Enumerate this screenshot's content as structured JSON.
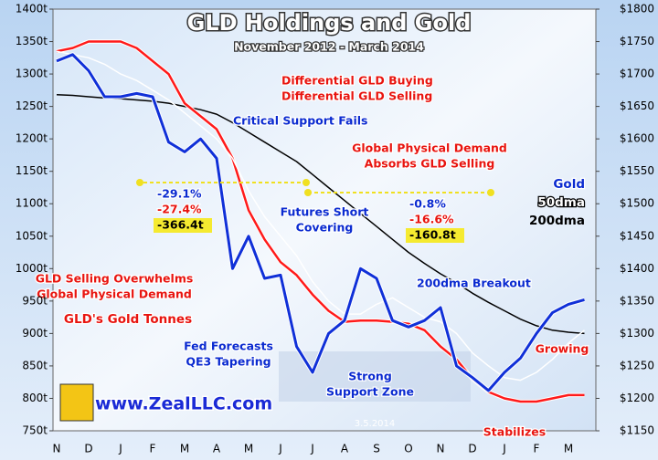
{
  "chart_data": {
    "type": "line",
    "title": "GLD Holdings and Gold",
    "subtitle": "November 2012 - March 2014",
    "categories": [
      "N",
      null,
      "D",
      null,
      "J",
      null,
      "F",
      null,
      "M",
      null,
      "A",
      null,
      "M",
      null,
      "J",
      null,
      "J",
      null,
      "A",
      null,
      "S",
      null,
      "O",
      null,
      "N",
      null,
      "D",
      null,
      "J",
      null,
      "F",
      null,
      "M",
      null
    ],
    "series": [
      {
        "name": "GLD's Gold Tonnes",
        "color": "#ff1a1a",
        "axis": "y",
        "values": [
          1335,
          1340,
          1350,
          1350,
          1350,
          1340,
          1320,
          1300,
          1255,
          1235,
          1215,
          1170,
          1090,
          1045,
          1010,
          990,
          960,
          935,
          918,
          920,
          920,
          918,
          915,
          905,
          880,
          860,
          830,
          810,
          800,
          795,
          795,
          800,
          805,
          805
        ]
      },
      {
        "name": "Gold",
        "color": "#1030d8",
        "axis": "y2",
        "values": [
          1720,
          1730,
          1705,
          1665,
          1665,
          1670,
          1665,
          1595,
          1580,
          1600,
          1570,
          1400,
          1450,
          1385,
          1390,
          1280,
          1240,
          1300,
          1320,
          1400,
          1385,
          1320,
          1310,
          1320,
          1340,
          1250,
          1232,
          1212,
          1240,
          1262,
          1300,
          1332,
          1345,
          1352
        ]
      },
      {
        "name": "50dma",
        "color": "#ffffff",
        "axis": "y2",
        "values": [
          1735,
          1730,
          1725,
          1715,
          1700,
          1690,
          1675,
          1660,
          1640,
          1620,
          1600,
          1570,
          1520,
          1480,
          1450,
          1420,
          1380,
          1350,
          1330,
          1330,
          1345,
          1355,
          1340,
          1325,
          1318,
          1300,
          1270,
          1250,
          1232,
          1228,
          1240,
          1260,
          1285,
          1305
        ]
      },
      {
        "name": "200dma",
        "color": "#000000",
        "axis": "y2",
        "values": [
          1668,
          1667,
          1665,
          1663,
          1662,
          1660,
          1658,
          1655,
          1650,
          1645,
          1638,
          1625,
          1610,
          1595,
          1580,
          1565,
          1545,
          1525,
          1505,
          1485,
          1465,
          1445,
          1425,
          1408,
          1392,
          1378,
          1362,
          1348,
          1335,
          1322,
          1312,
          1305,
          1302,
          1300
        ]
      }
    ],
    "ylim": [
      750,
      1400
    ],
    "yticks": [
      {
        "value": 750,
        "label": "750t"
      },
      {
        "value": 800,
        "label": "800t"
      },
      {
        "value": 850,
        "label": "850t"
      },
      {
        "value": 900,
        "label": "900t"
      },
      {
        "value": 950,
        "label": "950t"
      },
      {
        "value": 1000,
        "label": "1000t"
      },
      {
        "value": 1050,
        "label": "1050t"
      },
      {
        "value": 1100,
        "label": "1100t"
      },
      {
        "value": 1150,
        "label": "1150t"
      },
      {
        "value": 1200,
        "label": "1200t"
      },
      {
        "value": 1250,
        "label": "1250t"
      },
      {
        "value": 1300,
        "label": "1300t"
      },
      {
        "value": 1350,
        "label": "1350t"
      },
      {
        "value": 1400,
        "label": "1400t"
      }
    ],
    "y2lim": [
      1150,
      1800
    ],
    "y2ticks": [
      {
        "value": 1150,
        "label": "$1150"
      },
      {
        "value": 1200,
        "label": "$1200"
      },
      {
        "value": 1250,
        "label": "$1250"
      },
      {
        "value": 1300,
        "label": "$1300"
      },
      {
        "value": 1350,
        "label": "$1350"
      },
      {
        "value": 1400,
        "label": "$1400"
      },
      {
        "value": 1450,
        "label": "$1450"
      },
      {
        "value": 1500,
        "label": "$1500"
      },
      {
        "value": 1550,
        "label": "$1550"
      },
      {
        "value": 1600,
        "label": "$1600"
      },
      {
        "value": 1650,
        "label": "$1650"
      },
      {
        "value": 1700,
        "label": "$1700"
      },
      {
        "value": 1750,
        "label": "$1750"
      },
      {
        "value": 1800,
        "label": "$1800"
      }
    ],
    "annotations": [
      "Differential GLD Buying",
      "Differential GLD Selling",
      "Critical Support Fails",
      "Global Physical Demand",
      "Absorbs GLD Selling",
      "-29.1%",
      "-27.4%",
      "-366.4t",
      "-0.8%",
      "-16.6%",
      "-160.8t",
      "Futures Short",
      "Covering",
      "GLD Selling Overwhelms",
      "Global Physical Demand",
      "200dma Breakout",
      "Fed Forecasts",
      "QE3 Tapering",
      "Strong",
      "Support Zone",
      "Growing",
      "Stabilizes",
      "www.ZealLLC.com",
      "3.5.2014"
    ]
  }
}
